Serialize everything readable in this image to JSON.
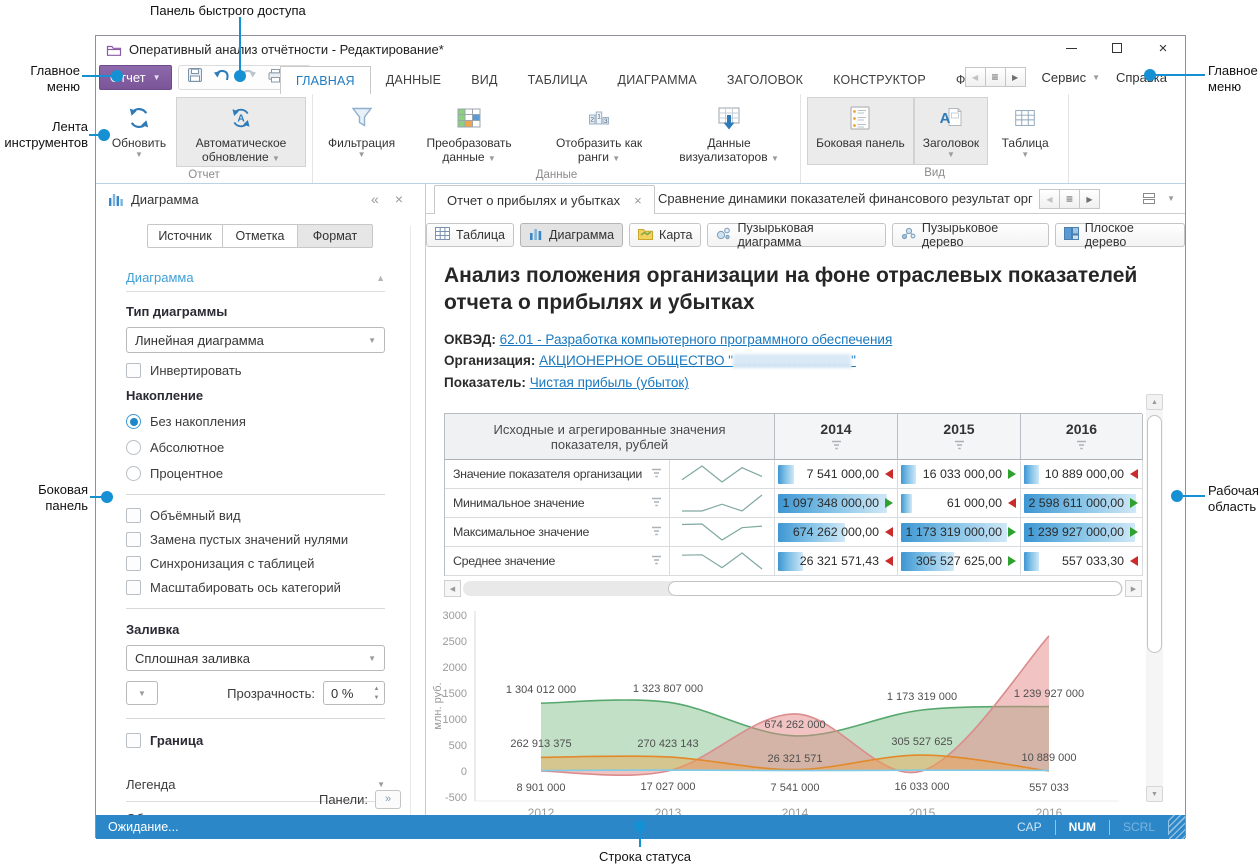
{
  "annotations": {
    "quick_access": "Панель быстрого доступа",
    "main_menu": "Главное меню",
    "ribbon": "Лента инструментов",
    "side_panel": "Боковая панель",
    "work_area": "Рабочая область",
    "status_bar": "Строка статуса"
  },
  "window": {
    "title": "Оперативный анализ отчётности - Редактирование*",
    "report_button": "Отчет",
    "menu_tabs": [
      "ГЛАВНАЯ",
      "ДАННЫЕ",
      "ВИД",
      "ТАБЛИЦА",
      "ДИАГРАММА",
      "ЗАГОЛОВОК",
      "КОНСТРУКТОР",
      "ФОРМАТ"
    ],
    "active_tab": "ГЛАВНАЯ",
    "service_label": "Сервис",
    "help_label": "Справка"
  },
  "ribbon": {
    "groups": [
      {
        "label": "Отчет",
        "buttons": [
          {
            "label": "Обновить",
            "icon": "refresh-icon"
          },
          {
            "label": "Автоматическое обновление",
            "icon": "auto-refresh-icon",
            "active": true
          }
        ]
      },
      {
        "label": "Данные",
        "buttons": [
          {
            "label": "Фильтрация",
            "icon": "filter-icon"
          },
          {
            "label": "Преобразовать данные",
            "icon": "transform-data-icon"
          },
          {
            "label": "Отобразить как ранги",
            "icon": "ranks-icon"
          },
          {
            "label": "Данные визуализаторов",
            "icon": "visualizer-data-icon"
          }
        ]
      },
      {
        "label": "Вид",
        "buttons": [
          {
            "label": "Боковая панель",
            "icon": "side-panel-icon",
            "active": true
          },
          {
            "label": "Заголовок",
            "icon": "header-icon",
            "active": true
          },
          {
            "label": "Таблица",
            "icon": "table-icon"
          }
        ]
      }
    ]
  },
  "sidebar": {
    "title": "Диаграмма",
    "tabs": [
      "Источник",
      "Отметка",
      "Формат"
    ],
    "active_tab": "Формат",
    "section_chart": "Диаграмма",
    "chart_type_label": "Тип диаграммы",
    "chart_type_value": "Линейная диаграмма",
    "invert_label": "Инвертировать",
    "accumulation_label": "Накопление",
    "accumulation_options": [
      "Без накопления",
      "Абсолютное",
      "Процентное"
    ],
    "accumulation_selected": "Без накопления",
    "checkboxes": [
      "Объёмный вид",
      "Замена пустых значений нулями",
      "Синхронизация с таблицей",
      "Масштабировать ось категорий"
    ],
    "fill_label": "Заливка",
    "fill_value": "Сплошная заливка",
    "transparency_label": "Прозрачность:",
    "transparency_value": "0 %",
    "border_label": "Граница",
    "section_legend": "Легенда",
    "section_plot_area": "Область построения",
    "panels_label": "Панели:"
  },
  "main": {
    "doc_tabs": [
      {
        "label": "Отчет о прибылях и убытках",
        "active": true
      },
      {
        "label": "Сравнение динамики показателей финансового результат организации и",
        "active": false
      }
    ],
    "view_buttons": [
      {
        "label": "Таблица",
        "icon": "table-view-icon"
      },
      {
        "label": "Диаграмма",
        "icon": "chart-view-icon",
        "active": true
      },
      {
        "label": "Карта",
        "icon": "map-view-icon"
      },
      {
        "label": "Пузырьковая диаграмма",
        "icon": "bubble-chart-icon"
      },
      {
        "label": "Пузырьковое дерево",
        "icon": "bubble-tree-icon"
      },
      {
        "label": "Плоское дерево",
        "icon": "flat-tree-icon"
      }
    ],
    "title": "Анализ положения организации на фоне отраслевых показателей отчета о прибылях и убытках",
    "meta": {
      "okved_label": "ОКВЭД:",
      "okved_link": "62.01 - Разработка компьютерного программного обеспечения",
      "org_label": "Организация:",
      "org_link_prefix": "АКЦИОНЕРНОЕ ОБЩЕСТВО \"",
      "org_redacted": true,
      "org_link_suffix": "\"",
      "indicator_label": "Показатель:",
      "indicator_link": "Чистая прибыль (убыток)"
    },
    "table": {
      "corner": "Исходные и агрегированные значения показателя, рублей",
      "years": [
        "2014",
        "2015",
        "2016"
      ],
      "rows": [
        {
          "label": "Значение показателя организации",
          "series": 3,
          "values": [
            "7 541 000,00",
            "16 033 000,00",
            "10 889 000,00"
          ],
          "trends": [
            "down",
            "up",
            "down"
          ],
          "bars": [
            0.14,
            0.13,
            0.13
          ]
        },
        {
          "label": "Минимальное значение",
          "series": 1,
          "values": [
            "1 097 348 000,00",
            "61 000,00",
            "2 598 611 000,00"
          ],
          "trends": [
            "up",
            "down",
            "up"
          ],
          "bars": [
            0.97,
            0.1,
            1.0
          ]
        },
        {
          "label": "Максимальное значение",
          "series": 0,
          "values": [
            "674 262 000,00",
            "1 173 319 000,00",
            "1 239 927 000,00"
          ],
          "trends": [
            "down",
            "up",
            "up"
          ],
          "bars": [
            0.6,
            0.95,
            0.99
          ]
        },
        {
          "label": "Среднее значение",
          "series": 2,
          "values": [
            "26 321 571,43",
            "305 527 625,00",
            "557 033,30"
          ],
          "trends": [
            "down",
            "up",
            "down"
          ],
          "bars": [
            0.22,
            0.47,
            0.13
          ]
        }
      ]
    }
  },
  "chart_data": {
    "type": "area",
    "smoothing": "spline",
    "legend": "none",
    "x": [
      "2012",
      "2013",
      "2014",
      "2015",
      "2016"
    ],
    "ylabel": "млн. руб.",
    "ylim": [
      -500,
      3000
    ],
    "yticks": [
      3000,
      2500,
      2000,
      1500,
      1000,
      500,
      0,
      -500
    ],
    "series": [
      {
        "name": "Максимальное значение",
        "color": "#57a86e",
        "fill": "rgba(110,180,120,0.42)",
        "values_rub": [
          1304012000,
          1323807000,
          674262000,
          1173319000,
          1239927000
        ],
        "labels": [
          "1 304 012 000",
          "1 323 807 000",
          "674 262 000",
          "1 173 319 000",
          "1 239 927 000"
        ],
        "label_dy": [
          -10,
          -10,
          -8,
          -10,
          -10
        ]
      },
      {
        "name": "Минимальное значение",
        "color": "#db8c8c",
        "fill": "rgba(228,135,135,0.5)",
        "values_rub": [
          0,
          0,
          1097348000,
          61000,
          2598611000
        ],
        "labels": [
          "",
          "",
          "",
          "",
          ""
        ],
        "label_dy": [
          0,
          0,
          0,
          0,
          0
        ]
      },
      {
        "name": "Среднее значение",
        "color": "#e2892b",
        "fill": "rgba(238,165,75,0.45)",
        "values_rub": [
          262913375,
          270423143,
          26321571,
          305527625,
          557033
        ],
        "labels": [
          "262 913 375",
          "270 423 143",
          "26 321 571",
          "305 527 625",
          "557 033"
        ],
        "label_dy": [
          -10,
          -10,
          -8,
          -10,
          20
        ]
      },
      {
        "name": "Значение показателя организации",
        "color": "#7fcbe8",
        "fill": "rgba(150,215,240,0.6)",
        "values_rub": [
          8901000,
          17027000,
          7541000,
          16033000,
          10889000
        ],
        "labels": [
          "8 901 000",
          "17 027 000",
          "7 541 000",
          "16 033 000",
          "10 889 000"
        ],
        "label_dy": [
          20,
          20,
          20,
          20,
          -9
        ]
      }
    ]
  },
  "status_bar": {
    "text": "Ожидание...",
    "indicators": [
      {
        "label": "CAP",
        "state": "dim"
      },
      {
        "label": "NUM",
        "state": "on"
      },
      {
        "label": "SCRL",
        "state": "dim2"
      }
    ]
  }
}
